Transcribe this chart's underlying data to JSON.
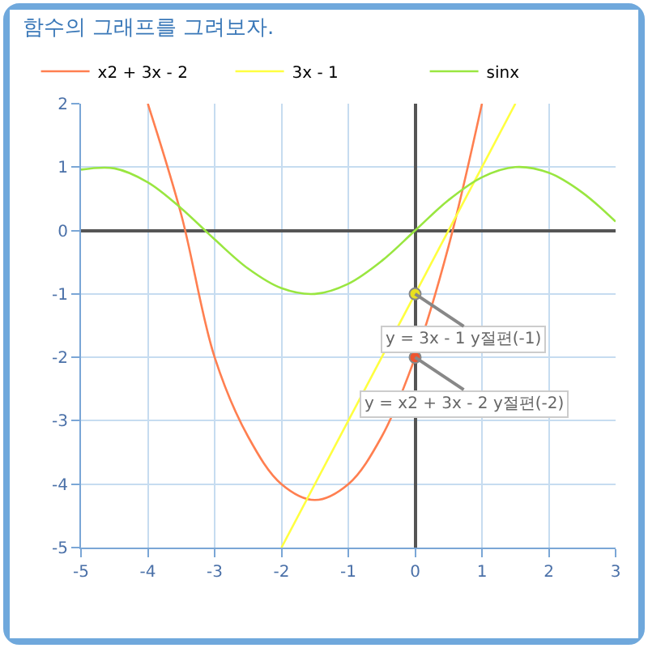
{
  "chart_data": {
    "type": "line",
    "title": "함수의 그래프를 그려보자.",
    "series": [
      {
        "name": "x2 + 3x - 2",
        "color": "#ff7f50",
        "x": [
          -4,
          -3.5,
          -3,
          -2.5,
          -2,
          -1.5,
          -1,
          -0.5,
          0,
          0.5,
          1
        ],
        "values": [
          2,
          0.25,
          -2,
          -3.25,
          -4,
          -4.25,
          -4,
          -3.25,
          -2,
          -0.25,
          2
        ]
      },
      {
        "name": "3x - 1",
        "color": "#ffff40",
        "x": [
          -2,
          -1,
          0,
          1,
          1.5
        ],
        "values": [
          -5,
          -3,
          -1,
          1,
          2
        ]
      },
      {
        "name": "sinx",
        "color": "#99e640",
        "x": [
          -5,
          -4.5,
          -4,
          -3.5,
          -3,
          -2.5,
          -2,
          -1.5,
          -1,
          -0.5,
          0,
          0.5,
          1,
          1.5,
          2,
          2.5,
          3
        ],
        "values": [
          0.96,
          0.98,
          0.76,
          0.35,
          -0.14,
          -0.6,
          -0.91,
          -1,
          -0.84,
          -0.48,
          0,
          0.48,
          0.84,
          1,
          0.91,
          0.6,
          0.14
        ]
      },
      {
        "type": "scatter",
        "marker": "circle",
        "color": "#e8e020",
        "x": [
          0
        ],
        "values": [
          -1
        ]
      },
      {
        "type": "scatter",
        "marker": "circle",
        "color": "#ee5530",
        "x": [
          0
        ],
        "values": [
          -2
        ]
      }
    ],
    "annotations": [
      {
        "text": "y = 3x - 1 y절편(-1)",
        "x": 0,
        "y": -1
      },
      {
        "text": "y = x2 + 3x - 2 y절편(-2)",
        "x": 0,
        "y": -2
      }
    ],
    "xlim": [
      -5,
      3
    ],
    "xticks": [
      -5,
      -4,
      -3,
      -2,
      -1,
      0,
      1,
      2,
      3
    ],
    "ylim": [
      -5,
      2
    ],
    "yticks": [
      -5,
      -4,
      -3,
      -2,
      -1,
      0,
      1,
      2
    ],
    "grid": true,
    "legend": "top",
    "marker": "none",
    "line_style": "solid"
  }
}
